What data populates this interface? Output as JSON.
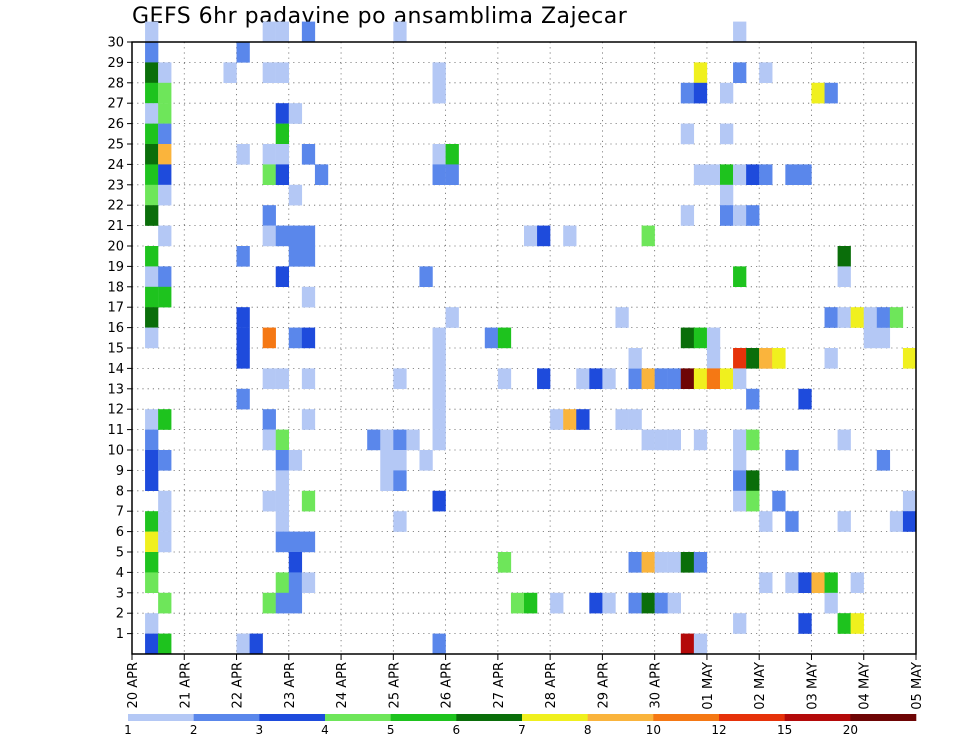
{
  "chart_data": {
    "type": "heatmap",
    "title": "GEFS 6hr padavine po ansamblima Zajecar",
    "xlabel": "",
    "ylabel": "",
    "x_tick_labels": [
      "20 APR",
      "21 APR",
      "22 APR",
      "23 APR",
      "24 APR",
      "25 APR",
      "26 APR",
      "27 APR",
      "28 APR",
      "29 APR",
      "30 APR",
      "01 MAY",
      "02 MAY",
      "03 MAY",
      "04 MAY",
      "05 MAY"
    ],
    "y_tick_labels": [
      "1",
      "2",
      "3",
      "4",
      "5",
      "6",
      "7",
      "8",
      "9",
      "10",
      "11",
      "12",
      "13",
      "14",
      "15",
      "16",
      "17",
      "18",
      "19",
      "20",
      "21",
      "22",
      "23",
      "24",
      "25",
      "26",
      "27",
      "28",
      "29",
      "30"
    ],
    "xlim": [
      0,
      60
    ],
    "ylim": [
      0,
      30
    ],
    "grid": true,
    "legend_placement": "bottom",
    "colorbar": {
      "labels": [
        "1",
        "2",
        "3",
        "4",
        "5",
        "6",
        "7",
        "8",
        "10",
        "12",
        "15",
        "20"
      ],
      "colors": [
        "#b4c8f5",
        "#5a87eb",
        "#1e4bdc",
        "#6ee65a",
        "#1ec31e",
        "#0a6e0a",
        "#f0f01e",
        "#fab43c",
        "#f57814",
        "#e6320a",
        "#b40a0a",
        "#6e0505"
      ]
    },
    "cells": [
      [
        1,
        30,
        0
      ],
      [
        1,
        29,
        1
      ],
      [
        1,
        28,
        5
      ],
      [
        1,
        27,
        4
      ],
      [
        1,
        26,
        0
      ],
      [
        1,
        25,
        4
      ],
      [
        1,
        24,
        5
      ],
      [
        1,
        23,
        4
      ],
      [
        1,
        22,
        3
      ],
      [
        1,
        21,
        5
      ],
      [
        1,
        19,
        4
      ],
      [
        1,
        18,
        0
      ],
      [
        1,
        17,
        4
      ],
      [
        1,
        16,
        5
      ],
      [
        1,
        15,
        0
      ],
      [
        1,
        11,
        0
      ],
      [
        1,
        10,
        1
      ],
      [
        1,
        9,
        2
      ],
      [
        1,
        8,
        2
      ],
      [
        1,
        6,
        4
      ],
      [
        1,
        5,
        6
      ],
      [
        1,
        4,
        4
      ],
      [
        1,
        3,
        3
      ],
      [
        1,
        1,
        0
      ],
      [
        1,
        0,
        2
      ],
      [
        2,
        28,
        0
      ],
      [
        2,
        27,
        3
      ],
      [
        2,
        26,
        3
      ],
      [
        2,
        25,
        1
      ],
      [
        2,
        24,
        7
      ],
      [
        2,
        23,
        2
      ],
      [
        2,
        22,
        0
      ],
      [
        2,
        20,
        0
      ],
      [
        2,
        18,
        1
      ],
      [
        2,
        17,
        4
      ],
      [
        2,
        11,
        4
      ],
      [
        2,
        9,
        1
      ],
      [
        2,
        7,
        0
      ],
      [
        2,
        6,
        0
      ],
      [
        2,
        5,
        0
      ],
      [
        2,
        2,
        3
      ],
      [
        2,
        0,
        4
      ],
      [
        7,
        28,
        0
      ],
      [
        8,
        29,
        1
      ],
      [
        8,
        24,
        0
      ],
      [
        8,
        19,
        1
      ],
      [
        8,
        16,
        2
      ],
      [
        8,
        15,
        2
      ],
      [
        8,
        14,
        2
      ],
      [
        8,
        12,
        1
      ],
      [
        8,
        0,
        0
      ],
      [
        9,
        0,
        2
      ],
      [
        10,
        30,
        0
      ],
      [
        10,
        28,
        0
      ],
      [
        10,
        24,
        0
      ],
      [
        10,
        23,
        3
      ],
      [
        10,
        21,
        1
      ],
      [
        10,
        20,
        0
      ],
      [
        10,
        15,
        8
      ],
      [
        10,
        13,
        0
      ],
      [
        10,
        11,
        1
      ],
      [
        10,
        10,
        0
      ],
      [
        10,
        7,
        0
      ],
      [
        10,
        2,
        3
      ],
      [
        11,
        30,
        0
      ],
      [
        11,
        28,
        0
      ],
      [
        11,
        26,
        2
      ],
      [
        11,
        25,
        4
      ],
      [
        11,
        24,
        0
      ],
      [
        11,
        23,
        2
      ],
      [
        11,
        20,
        1
      ],
      [
        11,
        18,
        2
      ],
      [
        11,
        13,
        0
      ],
      [
        11,
        10,
        3
      ],
      [
        11,
        9,
        1
      ],
      [
        11,
        8,
        0
      ],
      [
        11,
        7,
        0
      ],
      [
        11,
        6,
        0
      ],
      [
        11,
        5,
        1
      ],
      [
        11,
        3,
        3
      ],
      [
        11,
        2,
        1
      ],
      [
        12,
        26,
        0
      ],
      [
        12,
        22,
        0
      ],
      [
        12,
        20,
        1
      ],
      [
        12,
        19,
        1
      ],
      [
        12,
        15,
        1
      ],
      [
        12,
        9,
        0
      ],
      [
        12,
        5,
        1
      ],
      [
        12,
        4,
        2
      ],
      [
        12,
        3,
        1
      ],
      [
        12,
        2,
        1
      ],
      [
        13,
        30,
        1
      ],
      [
        13,
        24,
        1
      ],
      [
        13,
        20,
        1
      ],
      [
        13,
        19,
        1
      ],
      [
        13,
        17,
        0
      ],
      [
        13,
        15,
        2
      ],
      [
        13,
        13,
        0
      ],
      [
        13,
        11,
        0
      ],
      [
        13,
        7,
        3
      ],
      [
        13,
        5,
        1
      ],
      [
        13,
        3,
        0
      ],
      [
        14,
        23,
        1
      ],
      [
        18,
        10,
        1
      ],
      [
        19,
        10,
        0
      ],
      [
        19,
        9,
        0
      ],
      [
        19,
        8,
        0
      ],
      [
        20,
        30,
        0
      ],
      [
        20,
        13,
        0
      ],
      [
        20,
        10,
        1
      ],
      [
        20,
        9,
        0
      ],
      [
        20,
        8,
        1
      ],
      [
        20,
        6,
        0
      ],
      [
        21,
        10,
        0
      ],
      [
        22,
        18,
        1
      ],
      [
        22,
        9,
        0
      ],
      [
        23,
        28,
        0
      ],
      [
        23,
        27,
        0
      ],
      [
        23,
        24,
        0
      ],
      [
        23,
        23,
        1
      ],
      [
        23,
        15,
        0
      ],
      [
        23,
        14,
        0
      ],
      [
        23,
        13,
        0
      ],
      [
        23,
        12,
        0
      ],
      [
        23,
        11,
        0
      ],
      [
        23,
        10,
        0
      ],
      [
        23,
        7,
        2
      ],
      [
        23,
        0,
        1
      ],
      [
        24,
        24,
        4
      ],
      [
        24,
        23,
        1
      ],
      [
        24,
        16,
        0
      ],
      [
        27,
        15,
        1
      ],
      [
        28,
        15,
        4
      ],
      [
        28,
        13,
        0
      ],
      [
        28,
        4,
        3
      ],
      [
        29,
        2,
        3
      ],
      [
        30,
        2,
        4
      ],
      [
        30,
        20,
        0
      ],
      [
        31,
        20,
        2
      ],
      [
        31,
        13,
        2
      ],
      [
        32,
        11,
        0
      ],
      [
        33,
        11,
        7
      ],
      [
        34,
        11,
        2
      ],
      [
        32,
        2,
        0
      ],
      [
        33,
        20,
        0
      ],
      [
        34,
        13,
        0
      ],
      [
        35,
        13,
        2
      ],
      [
        35,
        2,
        2
      ],
      [
        36,
        13,
        0
      ],
      [
        36,
        2,
        0
      ],
      [
        37,
        16,
        0
      ],
      [
        37,
        11,
        0
      ],
      [
        38,
        11,
        0
      ],
      [
        38,
        13,
        1
      ],
      [
        38,
        14,
        0
      ],
      [
        38,
        4,
        1
      ],
      [
        38,
        2,
        1
      ],
      [
        39,
        13,
        7
      ],
      [
        39,
        10,
        0
      ],
      [
        39,
        4,
        7
      ],
      [
        39,
        2,
        5
      ],
      [
        39,
        20,
        3
      ],
      [
        40,
        13,
        1
      ],
      [
        40,
        10,
        0
      ],
      [
        40,
        4,
        0
      ],
      [
        40,
        2,
        1
      ],
      [
        41,
        13,
        1
      ],
      [
        41,
        10,
        0
      ],
      [
        41,
        4,
        0
      ],
      [
        41,
        2,
        0
      ],
      [
        42,
        13,
        11
      ],
      [
        42,
        27,
        1
      ],
      [
        42,
        25,
        0
      ],
      [
        42,
        21,
        0
      ],
      [
        42,
        15,
        5
      ],
      [
        42,
        4,
        5
      ],
      [
        42,
        0,
        10
      ],
      [
        43,
        28,
        6
      ],
      [
        43,
        27,
        2
      ],
      [
        43,
        23,
        0
      ],
      [
        43,
        15,
        4
      ],
      [
        43,
        13,
        6
      ],
      [
        43,
        10,
        0
      ],
      [
        43,
        4,
        1
      ],
      [
        43,
        0,
        0
      ],
      [
        44,
        13,
        8
      ],
      [
        44,
        23,
        0
      ],
      [
        44,
        15,
        0
      ],
      [
        44,
        14,
        0
      ],
      [
        44,
        13,
        8
      ],
      [
        45,
        13,
        6
      ],
      [
        45,
        27,
        0
      ],
      [
        45,
        25,
        0
      ],
      [
        45,
        23,
        4
      ],
      [
        45,
        22,
        0
      ],
      [
        45,
        21,
        1
      ],
      [
        46,
        30,
        0
      ],
      [
        46,
        28,
        1
      ],
      [
        46,
        23,
        0
      ],
      [
        46,
        21,
        0
      ],
      [
        46,
        18,
        4
      ],
      [
        46,
        14,
        9
      ],
      [
        46,
        13,
        0
      ],
      [
        46,
        10,
        0
      ],
      [
        46,
        9,
        0
      ],
      [
        46,
        8,
        1
      ],
      [
        46,
        7,
        0
      ],
      [
        46,
        1,
        0
      ],
      [
        47,
        23,
        2
      ],
      [
        47,
        21,
        1
      ],
      [
        47,
        14,
        5
      ],
      [
        47,
        12,
        1
      ],
      [
        47,
        10,
        3
      ],
      [
        47,
        8,
        5
      ],
      [
        47,
        7,
        3
      ],
      [
        48,
        28,
        0
      ],
      [
        48,
        23,
        1
      ],
      [
        48,
        14,
        7
      ],
      [
        48,
        14,
        7
      ],
      [
        48,
        6,
        0
      ],
      [
        48,
        3,
        0
      ],
      [
        49,
        14,
        6
      ],
      [
        49,
        7,
        1
      ],
      [
        49,
        14,
        6
      ],
      [
        50,
        23,
        1
      ],
      [
        50,
        9,
        1
      ],
      [
        50,
        6,
        1
      ],
      [
        50,
        3,
        0
      ],
      [
        51,
        23,
        1
      ],
      [
        51,
        12,
        2
      ],
      [
        51,
        3,
        2
      ],
      [
        51,
        1,
        2
      ],
      [
        52,
        27,
        6
      ],
      [
        52,
        3,
        7
      ],
      [
        53,
        27,
        1
      ],
      [
        53,
        16,
        1
      ],
      [
        53,
        14,
        0
      ],
      [
        53,
        3,
        4
      ],
      [
        53,
        2,
        0
      ],
      [
        54,
        19,
        5
      ],
      [
        54,
        18,
        0
      ],
      [
        54,
        16,
        0
      ],
      [
        54,
        10,
        0
      ],
      [
        54,
        6,
        0
      ],
      [
        54,
        1,
        4
      ],
      [
        55,
        16,
        6
      ],
      [
        55,
        3,
        0
      ],
      [
        55,
        1,
        6
      ],
      [
        56,
        16,
        0
      ],
      [
        56,
        15,
        0
      ],
      [
        57,
        15,
        0
      ],
      [
        57,
        16,
        1
      ],
      [
        57,
        9,
        1
      ],
      [
        58,
        16,
        3
      ],
      [
        58,
        6,
        0
      ],
      [
        59,
        14,
        6
      ],
      [
        59,
        7,
        0
      ],
      [
        59,
        6,
        2
      ]
    ]
  }
}
